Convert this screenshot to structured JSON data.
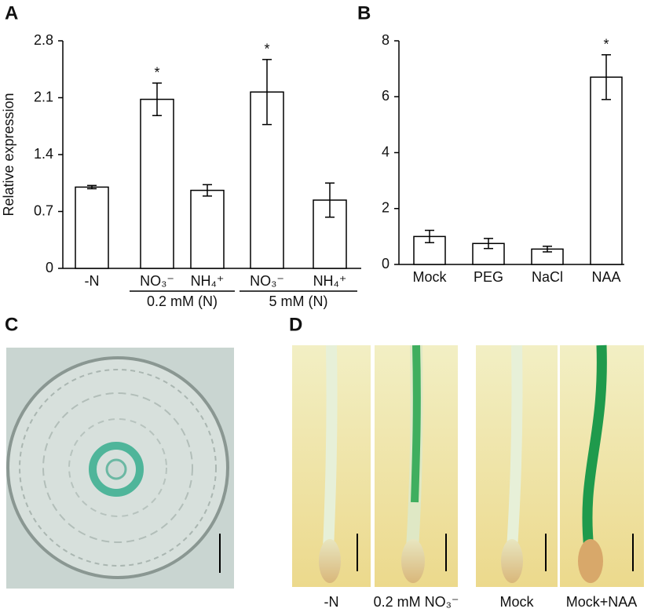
{
  "chart_data": [
    {
      "type": "bar",
      "ylabel": "Relative expression",
      "categories": [
        "-N",
        "NO₃⁻",
        "NH₄⁺",
        "NO₃⁻",
        "NH₄⁺"
      ],
      "groups": [
        {
          "label": "0.2 mM (N)",
          "members": [
            1,
            2
          ]
        },
        {
          "label": "5 mM (N)",
          "members": [
            3,
            4
          ]
        }
      ],
      "values": [
        1.0,
        2.08,
        0.96,
        2.17,
        0.84
      ],
      "errors": [
        0.02,
        0.2,
        0.07,
        0.4,
        0.21
      ],
      "significance": [
        null,
        "*",
        null,
        "*",
        null
      ],
      "color": "#ffffff",
      "ylim": [
        0,
        2.8
      ],
      "yticks": [
        0,
        0.7,
        1.4,
        2.1,
        2.8
      ]
    },
    {
      "type": "bar",
      "categories": [
        "Mock",
        "PEG",
        "NaCl",
        "NAA"
      ],
      "values": [
        1.0,
        0.75,
        0.55,
        6.7
      ],
      "errors": [
        0.22,
        0.18,
        0.1,
        0.8
      ],
      "significance": [
        null,
        null,
        null,
        "*"
      ],
      "color": "#ffffff",
      "ylim": [
        0,
        8
      ],
      "yticks": [
        0,
        2,
        4,
        6,
        8
      ]
    }
  ],
  "panels": {
    "labels": [
      "A",
      "B",
      "C",
      "D"
    ],
    "captions": [
      "-N",
      "0.2 mM NO₃⁻",
      "Mock",
      "Mock+NAA"
    ]
  }
}
